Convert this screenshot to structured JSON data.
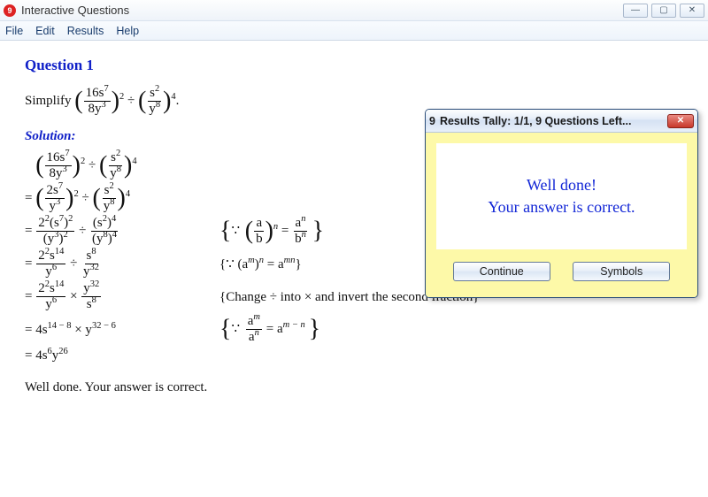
{
  "window": {
    "title": "Interactive Questions",
    "icon_glyph": "9",
    "icon_bg": "#cc2222",
    "menubar": [
      "File",
      "Edit",
      "Results",
      "Help"
    ]
  },
  "question": {
    "heading": "Question 1",
    "prompt_prefix": "Simplify ",
    "prompt_dot": ".",
    "solution_label": "Solution:",
    "final_msg": "Well done.  Your answer is correct."
  },
  "expr": {
    "p1_num": "16s",
    "p1_num_exp": "7",
    "p1_den": "8y",
    "p1_den_exp": "3",
    "p1_out_exp": "2",
    "p2_num": "s",
    "p2_num_exp": "2",
    "p2_den": "y",
    "p2_den_exp": "8",
    "p2_out_exp": "4",
    "div": "÷",
    "s2_num": "2s",
    "s2_num_exp": "7",
    "s2_den": "y",
    "s2_den_exp": "3",
    "s3_l_num": "2",
    "s3_l_num_e1": "2",
    "s3_l_paren": "(s",
    "s3_l_paren_e": "7",
    ")": ")",
    "s3_l_close_e": "2",
    "s3_l_den": "(y",
    "s3_l_den_e": "3",
    "s3_l_den_close_e": "2",
    "s3_r_num": "(s",
    "s3_r_num_e": "2",
    "s3_r_num_close_e": "4",
    "s3_r_den": "(y",
    "s3_r_den_e": "8",
    "s3_r_den_close_e": "4",
    "s4_l_num": "2",
    "s4_l_num_e": "2",
    "s4_l_s": "s",
    "s4_l_s_e": "14",
    "s4_l_den": "y",
    "s4_l_den_e": "6",
    "s4_r_num": "s",
    "s4_r_num_e": "8",
    "s4_r_den": "y",
    "s4_r_den_e": "32",
    "mul": "×",
    "s5_r_num": "y",
    "s5_r_num_e": "32",
    "s5_r_den": "s",
    "s5_r_den_e": "8",
    "s6": "= 4s",
    "s6_e1": "14 − 8",
    "s6_mid": " × y",
    "s6_e2": "32 − 6",
    "s7": "= 4s",
    "s7_e1": "6",
    "s7_y": "y",
    "s7_e2": "26"
  },
  "explain": {
    "e1_pre": "∵ ",
    "e1_a": "a",
    "e1_b": "b",
    "e1_n": "n",
    "e1_rhs_num": "a",
    "e1_rhs_den": "b",
    "e2": "{∵ (a",
    "e2_m": "m",
    "e2_mid": ")",
    "e2_n": "n",
    "e2_eq": " = a",
    "e2_mn": "mn",
    "e2_close": "}",
    "e3": "{Change ÷ into × and invert the second fraction}",
    "e4_pre": "∵ ",
    "e4_num": "a",
    "e4_num_e": "m",
    "e4_den": "a",
    "e4_den_e": "n",
    "e4_eq": " = a",
    "e4_rhs_e": "m − n"
  },
  "dialog": {
    "title": "Results Tally:  1/1, 9 Questions Left...",
    "line1": "Well done!",
    "line2": "Your answer is correct.",
    "btn_continue": "Continue",
    "btn_symbols": "Symbols"
  },
  "colors": {
    "heading": "#1020c8",
    "dialog_bg": "#fdf9a8",
    "dialog_text": "#1226d6"
  }
}
